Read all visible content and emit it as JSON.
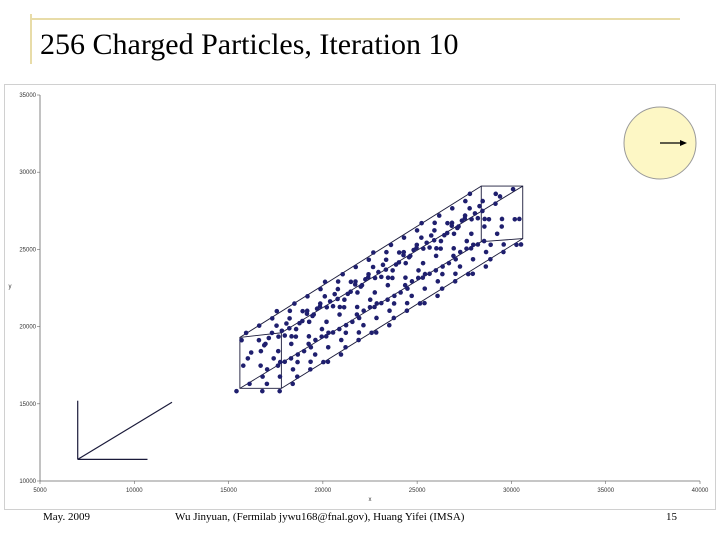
{
  "slide": {
    "title": "256 Charged Particles, Iteration 10",
    "accent_color": "#e8dca8",
    "footer": {
      "date": "May. 2009",
      "credit": "Wu Jinyuan, (Fermilab jywu168@fnal.gov), Huang Yifei (IMSA)",
      "page": "15"
    }
  },
  "chart_data": {
    "type": "scatter",
    "xlabel": "x",
    "ylabel": "y",
    "xlim": [
      5000,
      40000
    ],
    "ylim": [
      10000,
      35000
    ],
    "xticks": [
      "5000",
      "10000",
      "15000",
      "20000",
      "25000",
      "30000",
      "35000",
      "40000"
    ],
    "yticks": [
      "10000",
      "15000",
      "20000",
      "25000",
      "30000",
      "35000"
    ],
    "grid": false,
    "marker_color": "#1f1f6e",
    "line_color": "#1a1a3a",
    "outline_box": {
      "front_corners": [
        [
          15600,
          19300
        ],
        [
          17800,
          19600
        ],
        [
          17800,
          16000
        ],
        [
          15600,
          16000
        ]
      ],
      "back_corners": [
        [
          28400,
          29100
        ],
        [
          30600,
          29100
        ],
        [
          30600,
          25700
        ],
        [
          28400,
          25500
        ]
      ]
    },
    "inset_axes": {
      "origin": [
        7000,
        11400
      ],
      "x_end": [
        10700,
        11400
      ],
      "y_end": [
        7000,
        15200
      ],
      "diag_end": [
        12000,
        15100
      ]
    },
    "direction_indicator": {
      "circle_fill": "#fdf7c5",
      "circle_stroke": "#9a9a9a",
      "arrow": "right"
    }
  }
}
